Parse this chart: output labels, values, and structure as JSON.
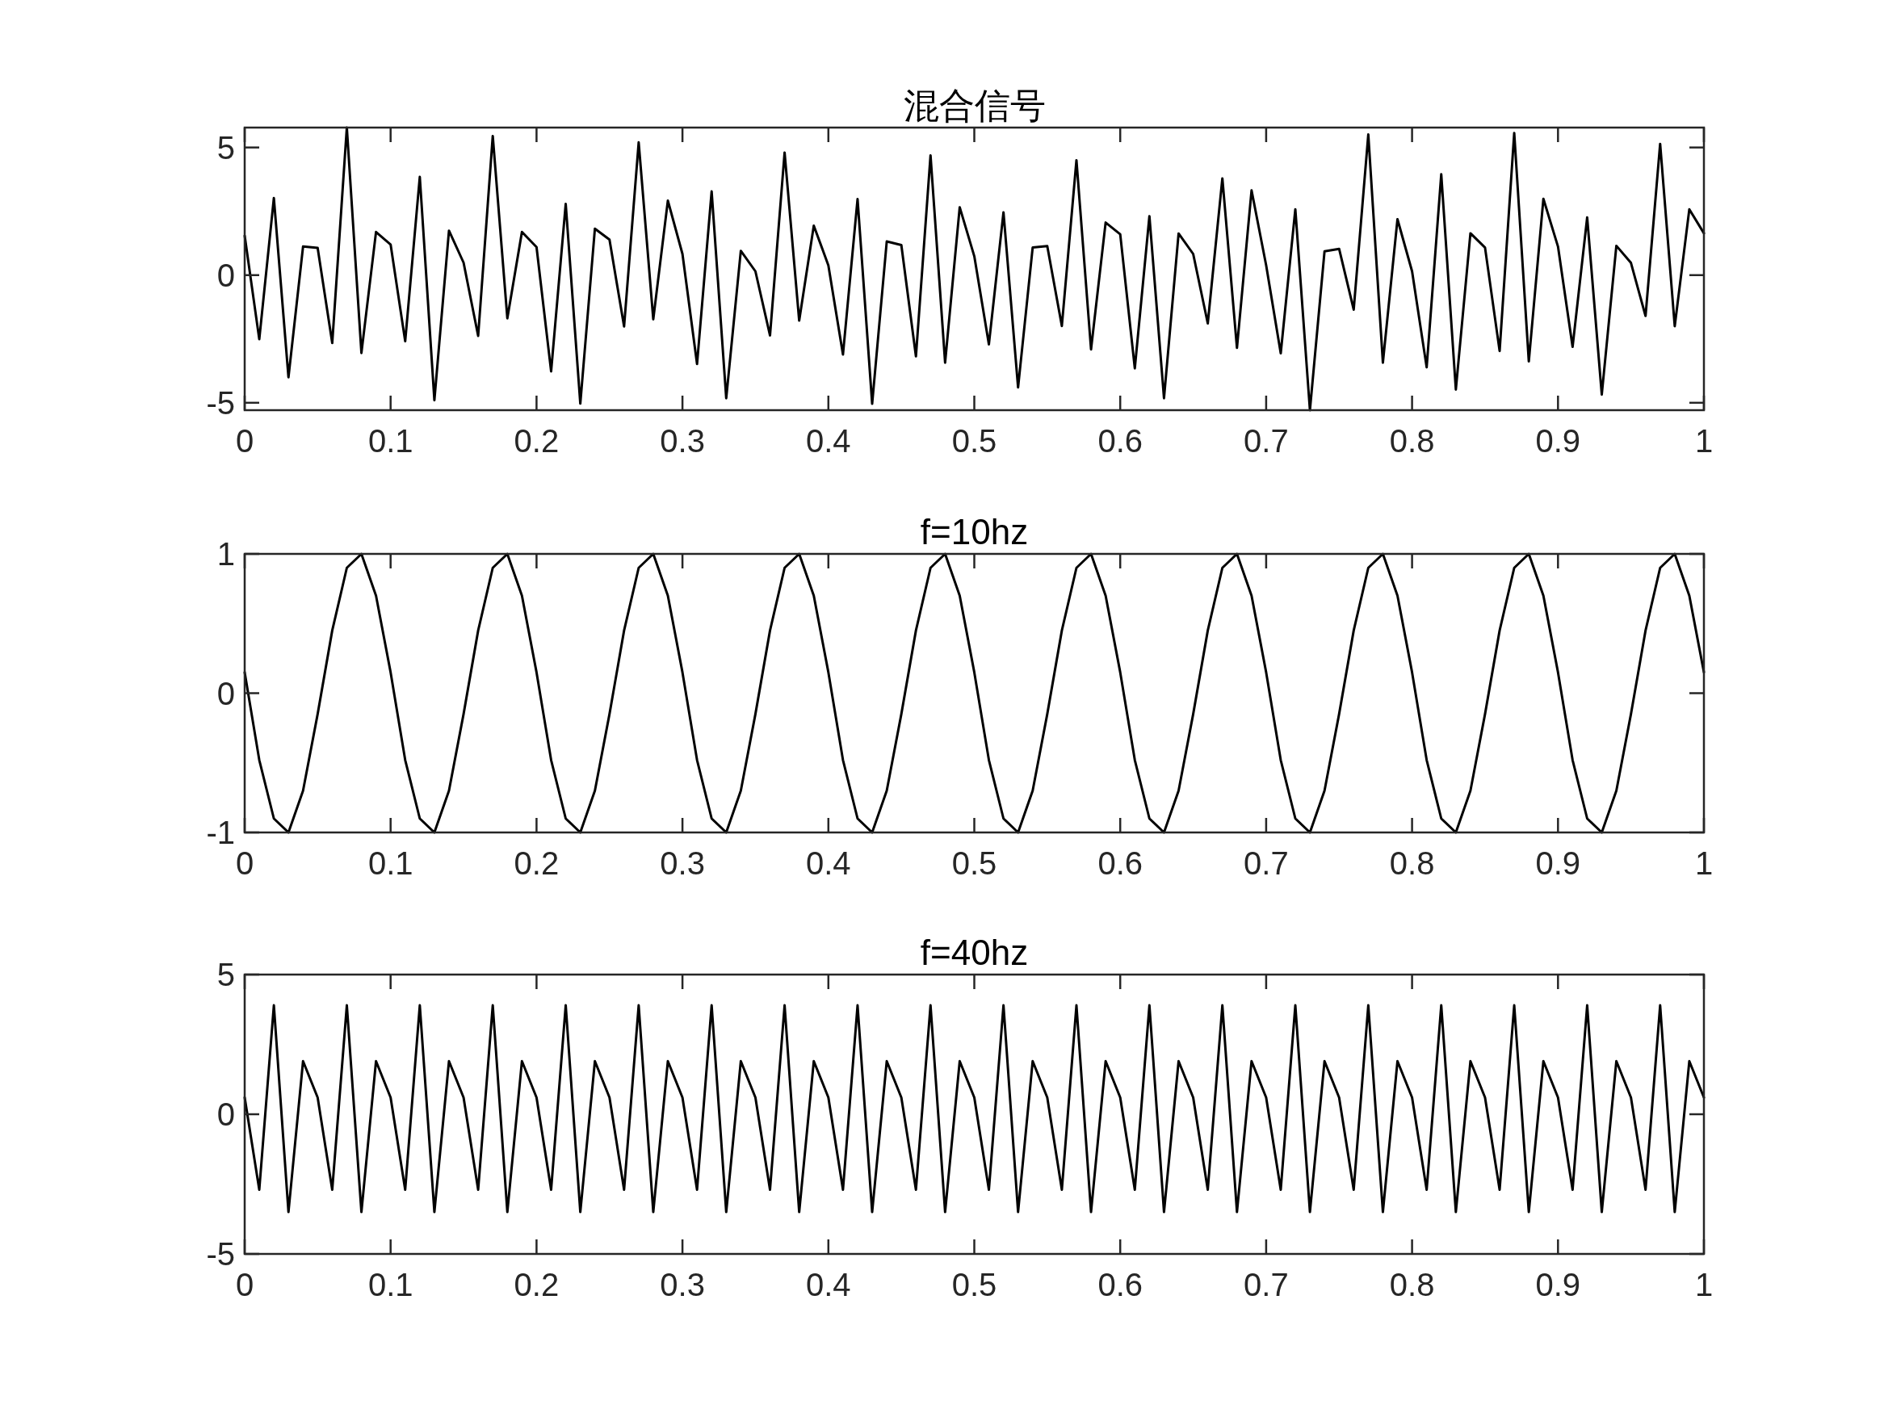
{
  "chart_data": [
    {
      "type": "line",
      "title": "混合信号",
      "x": [
        0,
        0.01,
        0.02,
        0.03,
        0.04,
        0.05,
        0.06,
        0.07,
        0.08,
        0.09,
        0.1,
        0.11,
        0.12,
        0.13,
        0.14,
        0.15,
        0.16,
        0.17,
        0.18,
        0.19,
        0.2,
        0.21,
        0.22,
        0.23,
        0.24,
        0.25,
        0.26,
        0.27,
        0.28,
        0.29,
        0.3,
        0.31,
        0.32,
        0.33,
        0.34,
        0.35,
        0.36,
        0.37,
        0.38,
        0.39,
        0.4,
        0.41,
        0.42,
        0.43,
        0.44,
        0.45,
        0.46,
        0.47,
        0.48,
        0.49,
        0.5,
        0.51,
        0.52,
        0.53,
        0.54,
        0.55,
        0.56,
        0.57,
        0.58,
        0.59,
        0.6,
        0.61,
        0.62,
        0.63,
        0.64,
        0.65,
        0.66,
        0.67,
        0.68,
        0.69,
        0.7,
        0.71,
        0.72,
        0.73,
        0.74,
        0.75,
        0.76,
        0.77,
        0.78,
        0.79,
        0.8,
        0.81,
        0.82,
        0.83,
        0.84,
        0.85,
        0.86,
        0.87,
        0.88,
        0.89,
        0.9,
        0.91,
        0.92,
        0.93,
        0.94,
        0.95,
        0.96,
        0.97,
        0.98,
        0.99,
        1
      ],
      "values": [
        1.54,
        -2.51,
        3.02,
        -4.0,
        1.12,
        1.07,
        -2.66,
        5.78,
        -3.05,
        1.69,
        1.2,
        -2.59,
        3.85,
        -4.9,
        1.74,
        0.49,
        -2.38,
        5.45,
        -1.69,
        1.69,
        1.1,
        -3.77,
        2.79,
        -5.03,
        1.82,
        1.39,
        -2.01,
        5.2,
        -1.73,
        2.92,
        0.83,
        -3.48,
        3.28,
        -4.82,
        0.95,
        0.15,
        -2.36,
        4.8,
        -1.78,
        1.94,
        0.38,
        -3.11,
        2.98,
        -5.04,
        1.32,
        1.18,
        -3.18,
        4.69,
        -3.43,
        2.66,
        0.74,
        -2.71,
        2.46,
        -4.4,
        1.08,
        1.14,
        -1.99,
        4.5,
        -2.91,
        2.06,
        1.6,
        -3.65,
        2.31,
        -4.82,
        1.63,
        0.83,
        -1.89,
        3.79,
        -2.85,
        3.32,
        0.39,
        -3.06,
        2.58,
        -5.29,
        0.93,
        1.03,
        -1.35,
        5.51,
        -3.43,
        2.19,
        0.15,
        -3.61,
        3.95,
        -4.48,
        1.64,
        1.08,
        -2.97,
        5.57,
        -3.38,
        2.99,
        1.12,
        -2.81,
        2.26,
        -4.68,
        1.15,
        0.48,
        -1.6,
        5.14,
        -2.0,
        2.58,
        1.64
      ],
      "color": "#000000",
      "xlim": [
        0,
        1
      ],
      "ylim": [
        -5.29,
        5.78
      ],
      "xticks": [
        0,
        0.1,
        0.2,
        0.3,
        0.4,
        0.5,
        0.6,
        0.7,
        0.8,
        0.9,
        1
      ],
      "yticks": [
        -5,
        0,
        5
      ]
    },
    {
      "type": "line",
      "title": "f=10hz",
      "x": [
        0,
        0.01,
        0.02,
        0.03,
        0.04,
        0.05,
        0.06,
        0.07,
        0.08,
        0.09,
        0.1,
        0.11,
        0.12,
        0.13,
        0.14,
        0.15,
        0.16,
        0.17,
        0.18,
        0.19,
        0.2,
        0.21,
        0.22,
        0.23,
        0.24,
        0.25,
        0.26,
        0.27,
        0.28,
        0.29,
        0.3,
        0.31,
        0.32,
        0.33,
        0.34,
        0.35,
        0.36,
        0.37,
        0.38,
        0.39,
        0.4,
        0.41,
        0.42,
        0.43,
        0.44,
        0.45,
        0.46,
        0.47,
        0.48,
        0.49,
        0.5,
        0.51,
        0.52,
        0.53,
        0.54,
        0.55,
        0.56,
        0.57,
        0.58,
        0.59,
        0.6,
        0.61,
        0.62,
        0.63,
        0.64,
        0.65,
        0.66,
        0.67,
        0.68,
        0.69,
        0.7,
        0.71,
        0.72,
        0.73,
        0.74,
        0.75,
        0.76,
        0.77,
        0.78,
        0.79,
        0.8,
        0.81,
        0.82,
        0.83,
        0.84,
        0.85,
        0.86,
        0.87,
        0.88,
        0.89,
        0.9,
        0.91,
        0.92,
        0.93,
        0.94,
        0.95,
        0.96,
        0.97,
        0.98,
        0.99,
        1
      ],
      "values": [
        0.15,
        -0.48,
        -0.9,
        -1.0,
        -0.7,
        -0.15,
        0.45,
        0.9,
        1.0,
        0.7,
        0.15,
        -0.48,
        -0.9,
        -1.0,
        -0.7,
        -0.15,
        0.45,
        0.9,
        1.0,
        0.7,
        0.15,
        -0.48,
        -0.9,
        -1.0,
        -0.7,
        -0.15,
        0.45,
        0.9,
        1.0,
        0.7,
        0.15,
        -0.48,
        -0.9,
        -1.0,
        -0.7,
        -0.15,
        0.45,
        0.9,
        1.0,
        0.7,
        0.15,
        -0.48,
        -0.9,
        -1.0,
        -0.7,
        -0.15,
        0.45,
        0.9,
        1.0,
        0.7,
        0.15,
        -0.48,
        -0.9,
        -1.0,
        -0.7,
        -0.15,
        0.45,
        0.9,
        1.0,
        0.7,
        0.15,
        -0.48,
        -0.9,
        -1.0,
        -0.7,
        -0.15,
        0.45,
        0.9,
        1.0,
        0.7,
        0.15,
        -0.48,
        -0.9,
        -1.0,
        -0.7,
        -0.15,
        0.45,
        0.9,
        1.0,
        0.7,
        0.15,
        -0.48,
        -0.9,
        -1.0,
        -0.7,
        -0.15,
        0.45,
        0.9,
        1.0,
        0.7,
        0.15,
        -0.48,
        -0.9,
        -1.0,
        -0.7,
        -0.15,
        0.45,
        0.9,
        1.0,
        0.7,
        0.15
      ],
      "color": "#000000",
      "xlim": [
        0,
        1
      ],
      "ylim": [
        -1,
        1
      ],
      "xticks": [
        0,
        0.1,
        0.2,
        0.3,
        0.4,
        0.5,
        0.6,
        0.7,
        0.8,
        0.9,
        1
      ],
      "yticks": [
        -1,
        0,
        1
      ]
    },
    {
      "type": "line",
      "title": "f=40hz",
      "x": [
        0,
        0.01,
        0.02,
        0.03,
        0.04,
        0.05,
        0.06,
        0.07,
        0.08,
        0.09,
        0.1,
        0.11,
        0.12,
        0.13,
        0.14,
        0.15,
        0.16,
        0.17,
        0.18,
        0.19,
        0.2,
        0.21,
        0.22,
        0.23,
        0.24,
        0.25,
        0.26,
        0.27,
        0.28,
        0.29,
        0.3,
        0.31,
        0.32,
        0.33,
        0.34,
        0.35,
        0.36,
        0.37,
        0.38,
        0.39,
        0.4,
        0.41,
        0.42,
        0.43,
        0.44,
        0.45,
        0.46,
        0.47,
        0.48,
        0.49,
        0.5,
        0.51,
        0.52,
        0.53,
        0.54,
        0.55,
        0.56,
        0.57,
        0.58,
        0.59,
        0.6,
        0.61,
        0.62,
        0.63,
        0.64,
        0.65,
        0.66,
        0.67,
        0.68,
        0.69,
        0.7,
        0.71,
        0.72,
        0.73,
        0.74,
        0.75,
        0.76,
        0.77,
        0.78,
        0.79,
        0.8,
        0.81,
        0.82,
        0.83,
        0.84,
        0.85,
        0.86,
        0.87,
        0.88,
        0.89,
        0.9,
        0.91,
        0.92,
        0.93,
        0.94,
        0.95,
        0.96,
        0.97,
        0.98,
        0.99,
        1
      ],
      "values": [
        0.6,
        -2.7,
        3.9,
        -3.5,
        1.9,
        0.6,
        -2.7,
        3.9,
        -3.5,
        1.9,
        0.6,
        -2.7,
        3.9,
        -3.5,
        1.9,
        0.6,
        -2.7,
        3.9,
        -3.5,
        1.9,
        0.6,
        -2.7,
        3.9,
        -3.5,
        1.9,
        0.6,
        -2.7,
        3.9,
        -3.5,
        1.9,
        0.6,
        -2.7,
        3.9,
        -3.5,
        1.9,
        0.6,
        -2.7,
        3.9,
        -3.5,
        1.9,
        0.6,
        -2.7,
        3.9,
        -3.5,
        1.9,
        0.6,
        -2.7,
        3.9,
        -3.5,
        1.9,
        0.6,
        -2.7,
        3.9,
        -3.5,
        1.9,
        0.6,
        -2.7,
        3.9,
        -3.5,
        1.9,
        0.6,
        -2.7,
        3.9,
        -3.5,
        1.9,
        0.6,
        -2.7,
        3.9,
        -3.5,
        1.9,
        0.6,
        -2.7,
        3.9,
        -3.5,
        1.9,
        0.6,
        -2.7,
        3.9,
        -3.5,
        1.9,
        0.6,
        -2.7,
        3.9,
        -3.5,
        1.9,
        0.6,
        -2.7,
        3.9,
        -3.5,
        1.9,
        0.6,
        -2.7,
        3.9,
        -3.5,
        1.9,
        0.6,
        -2.7,
        3.9,
        -3.5,
        1.9,
        0.6
      ],
      "color": "#000000",
      "xlim": [
        0,
        1
      ],
      "ylim": [
        -5,
        5
      ],
      "xticks": [
        0,
        0.1,
        0.2,
        0.3,
        0.4,
        0.5,
        0.6,
        0.7,
        0.8,
        0.9,
        1
      ],
      "yticks": [
        -5,
        0,
        5
      ]
    }
  ]
}
